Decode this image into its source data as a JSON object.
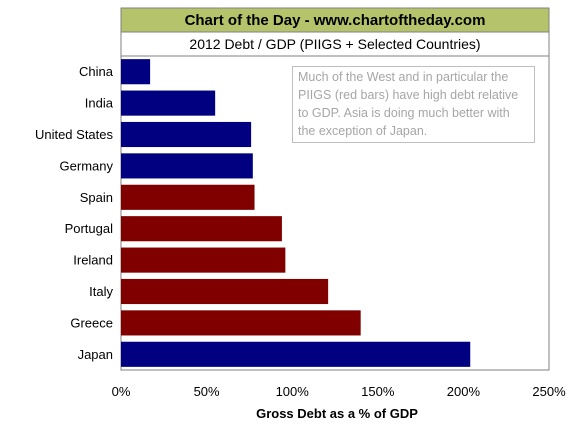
{
  "banner": {
    "title": "Chart of the Day - www.chartoftheday.com",
    "bg_color": "#b5c36b"
  },
  "annotation": {
    "text": "Much of the West and in particular the PIIGS (red bars) have high debt relative to GDP. Asia is doing much better with the exception of Japan."
  },
  "colors": {
    "blue": "#000080",
    "red": "#800000",
    "frame": "#808080"
  },
  "chart_data": {
    "type": "bar",
    "orientation": "horizontal",
    "title": "2012 Debt / GDP (PIIGS + Selected Countries)",
    "xlabel": "Gross Debt as a % of GDP",
    "ylabel": "",
    "xlim": [
      0,
      250
    ],
    "x_ticks": [
      0,
      50,
      100,
      150,
      200,
      250
    ],
    "x_tick_labels": [
      "0%",
      "50%",
      "100%",
      "150%",
      "200%",
      "250%"
    ],
    "grid": false,
    "legend": "none",
    "categories": [
      "China",
      "India",
      "United States",
      "Germany",
      "Spain",
      "Portugal",
      "Ireland",
      "Italy",
      "Greece",
      "Japan"
    ],
    "values": [
      17,
      55,
      76,
      77,
      78,
      94,
      96,
      121,
      140,
      204
    ],
    "bar_colors": [
      "#000080",
      "#000080",
      "#000080",
      "#000080",
      "#800000",
      "#800000",
      "#800000",
      "#800000",
      "#800000",
      "#000080"
    ]
  }
}
